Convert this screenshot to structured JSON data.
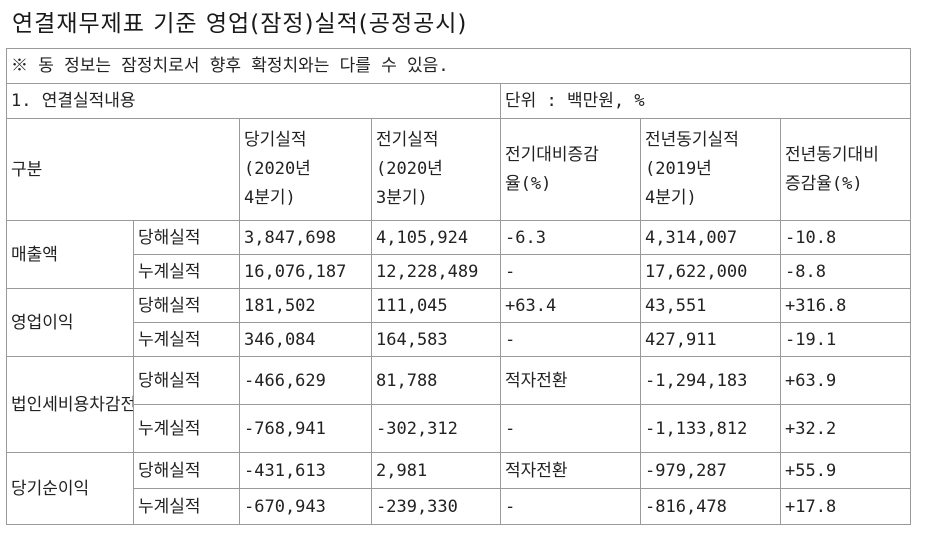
{
  "page_title": "연결재무제표 기준 영업(잠정)실적(공정공시)",
  "notice": "※ 동 정보는 잠정치로서 향후 확정치와는 다를 수 있음.",
  "section": {
    "title": "1. 연결실적내용",
    "unit": "단위 : 백만원, %"
  },
  "headers": {
    "category": "구분",
    "current": {
      "label": "당기실적",
      "period_line1": "(2020년",
      "period_line2": "4분기)"
    },
    "previous": {
      "label": "전기실적",
      "period_line1": "(2020년",
      "period_line2": "3분기)"
    },
    "qoq": {
      "line1": "전기대비증감",
      "line2": "율(%)"
    },
    "prior_year": {
      "label": "전년동기실적",
      "period_line1": "(2019년",
      "period_line2": "4분기)"
    },
    "yoy": {
      "line1": "전년동기대비",
      "line2": "증감율(%)"
    }
  },
  "rows": [
    {
      "category": "매출액",
      "lines": [
        {
          "type": "당해실적",
          "current": "3,847,698",
          "previous": "4,105,924",
          "qoq": "-6.3",
          "prior_year": "4,314,007",
          "yoy": "-10.8"
        },
        {
          "type": "누계실적",
          "current": "16,076,187",
          "previous": "12,228,489",
          "qoq": "-",
          "prior_year": "17,622,000",
          "yoy": "-8.8"
        }
      ]
    },
    {
      "category": "영업이익",
      "lines": [
        {
          "type": "당해실적",
          "current": "181,502",
          "previous": "111,045",
          "qoq": "+63.4",
          "prior_year": "43,551",
          "yoy": "+316.8"
        },
        {
          "type": "누계실적",
          "current": "346,084",
          "previous": "164,583",
          "qoq": "-",
          "prior_year": "427,911",
          "yoy": "-19.1"
        }
      ]
    },
    {
      "category": "법인세비용차감전계속사업이익",
      "lines": [
        {
          "type": "당해실적",
          "current": "-466,629",
          "previous": "81,788",
          "qoq": "적자전환",
          "prior_year": "-1,294,183",
          "yoy": "+63.9"
        },
        {
          "type": "누계실적",
          "current": "-768,941",
          "previous": "-302,312",
          "qoq": "-",
          "prior_year": "-1,133,812",
          "yoy": "+32.2"
        }
      ]
    },
    {
      "category": "당기순이익",
      "lines": [
        {
          "type": "당해실적",
          "current": "-431,613",
          "previous": "2,981",
          "qoq": "적자전환",
          "prior_year": "-979,287",
          "yoy": "+55.9"
        },
        {
          "type": "누계실적",
          "current": "-670,943",
          "previous": "-239,330",
          "qoq": "-",
          "prior_year": "-816,478",
          "yoy": "+17.8"
        }
      ]
    }
  ]
}
